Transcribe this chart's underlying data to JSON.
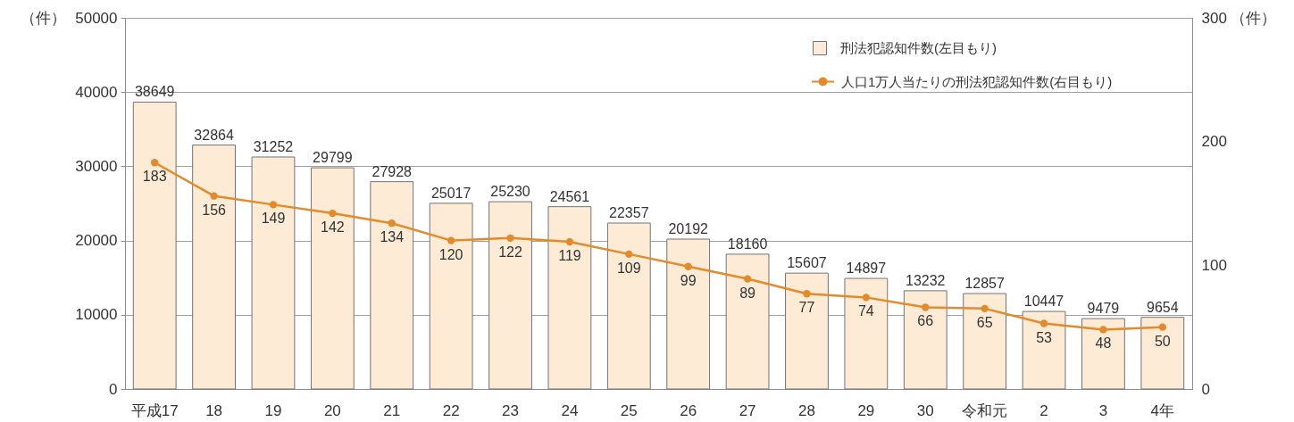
{
  "chart_data": {
    "type": "bar",
    "categories": [
      "平成17",
      "18",
      "19",
      "20",
      "21",
      "22",
      "23",
      "24",
      "25",
      "26",
      "27",
      "28",
      "29",
      "30",
      "令和元",
      "2",
      "3",
      "4年"
    ],
    "ylabel": "（件）",
    "y2label": "（件）",
    "ylim": [
      0,
      50000
    ],
    "yticks": [
      0,
      10000,
      20000,
      30000,
      40000,
      50000
    ],
    "y2lim": [
      0,
      300
    ],
    "y2ticks": [
      0,
      100,
      200,
      300
    ],
    "series": [
      {
        "name": "刑法犯認知件数(左目もり)",
        "color": "#fdebd6",
        "values": [
          38649,
          32864,
          31252,
          29799,
          27928,
          25017,
          25230,
          24561,
          22357,
          20192,
          18160,
          15607,
          14897,
          13232,
          12857,
          10447,
          9479,
          9654
        ]
      },
      {
        "name": "人口1万人当たりの刑法犯認知件数(右目もり)",
        "type": "line",
        "axis": "y2",
        "color": "#e38b2a",
        "values": [
          183,
          156,
          149,
          142,
          134,
          120,
          122,
          119,
          109,
          99,
          89,
          77,
          74,
          66,
          65,
          53,
          48,
          50
        ]
      }
    ],
    "data_labels": true,
    "grid": "y",
    "legend": "top right",
    "marker": "circle"
  }
}
